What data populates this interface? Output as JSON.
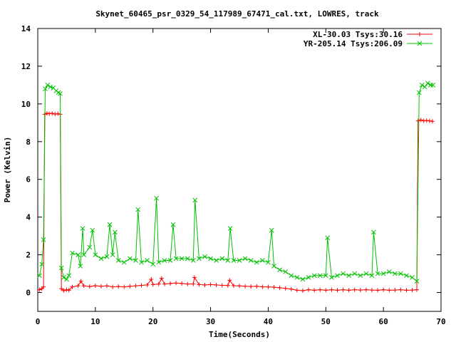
{
  "chart_data": {
    "type": "line",
    "title": "Skynet_60465_psr_0329_54_117989_67471_cal.txt, LOWRES, track",
    "xlabel": "Time(Seconds)",
    "ylabel": "Power (Kelvin)",
    "xlim": [
      0,
      70
    ],
    "ylim": [
      -1,
      14
    ],
    "xticks": [
      0,
      10,
      20,
      30,
      40,
      50,
      60,
      70
    ],
    "yticks": [
      0,
      2,
      4,
      6,
      8,
      10,
      12,
      14
    ],
    "grid": false,
    "legend_position": "top-right",
    "series": [
      {
        "name": "XL-30.03 Tsys:30.16",
        "color": "#ff0000",
        "marker": "plus",
        "points": [
          [
            0.3,
            0.15
          ],
          [
            0.7,
            0.2
          ],
          [
            1.0,
            0.3
          ],
          [
            1.2,
            9.45
          ],
          [
            1.6,
            9.5
          ],
          [
            2.0,
            9.48
          ],
          [
            2.5,
            9.5
          ],
          [
            3.0,
            9.46
          ],
          [
            3.5,
            9.48
          ],
          [
            3.9,
            9.45
          ],
          [
            4.1,
            0.2
          ],
          [
            4.5,
            0.1
          ],
          [
            5.0,
            0.15
          ],
          [
            5.4,
            0.12
          ],
          [
            6.0,
            0.3
          ],
          [
            7.0,
            0.35
          ],
          [
            7.5,
            0.6
          ],
          [
            8.0,
            0.35
          ],
          [
            9.0,
            0.32
          ],
          [
            10.0,
            0.36
          ],
          [
            11.0,
            0.33
          ],
          [
            12.0,
            0.35
          ],
          [
            13.0,
            0.3
          ],
          [
            14.0,
            0.32
          ],
          [
            15.0,
            0.3
          ],
          [
            16.0,
            0.33
          ],
          [
            17.0,
            0.35
          ],
          [
            18.0,
            0.38
          ],
          [
            19.0,
            0.4
          ],
          [
            19.7,
            0.7
          ],
          [
            20.0,
            0.42
          ],
          [
            21.0,
            0.45
          ],
          [
            21.5,
            0.75
          ],
          [
            22.0,
            0.45
          ],
          [
            23.0,
            0.48
          ],
          [
            24.0,
            0.5
          ],
          [
            25.0,
            0.48
          ],
          [
            26.0,
            0.45
          ],
          [
            27.0,
            0.45
          ],
          [
            27.2,
            0.8
          ],
          [
            28.0,
            0.42
          ],
          [
            29.0,
            0.4
          ],
          [
            30.0,
            0.42
          ],
          [
            31.0,
            0.4
          ],
          [
            32.0,
            0.38
          ],
          [
            33.0,
            0.37
          ],
          [
            33.3,
            0.65
          ],
          [
            34.0,
            0.36
          ],
          [
            35.0,
            0.35
          ],
          [
            36.0,
            0.33
          ],
          [
            37.0,
            0.32
          ],
          [
            38.0,
            0.33
          ],
          [
            39.0,
            0.3
          ],
          [
            40.0,
            0.3
          ],
          [
            41.0,
            0.28
          ],
          [
            42.0,
            0.25
          ],
          [
            43.0,
            0.22
          ],
          [
            44.0,
            0.18
          ],
          [
            45.0,
            0.12
          ],
          [
            46.0,
            0.1
          ],
          [
            47.0,
            0.15
          ],
          [
            48.0,
            0.12
          ],
          [
            49.0,
            0.15
          ],
          [
            50.0,
            0.12
          ],
          [
            51.0,
            0.15
          ],
          [
            52.0,
            0.12
          ],
          [
            53.0,
            0.15
          ],
          [
            54.0,
            0.12
          ],
          [
            55.0,
            0.15
          ],
          [
            56.0,
            0.13
          ],
          [
            57.0,
            0.15
          ],
          [
            58.0,
            0.13
          ],
          [
            59.0,
            0.12
          ],
          [
            60.0,
            0.15
          ],
          [
            61.0,
            0.12
          ],
          [
            62.0,
            0.13
          ],
          [
            63.0,
            0.15
          ],
          [
            64.0,
            0.12
          ],
          [
            65.0,
            0.13
          ],
          [
            65.8,
            0.15
          ],
          [
            66.0,
            9.1
          ],
          [
            66.5,
            9.15
          ],
          [
            67.0,
            9.1
          ],
          [
            67.5,
            9.12
          ],
          [
            68.0,
            9.1
          ],
          [
            68.5,
            9.08
          ]
        ]
      },
      {
        "name": "YR-205.14 Tsys:206.09",
        "color": "#00c000",
        "marker": "cross",
        "points": [
          [
            0.3,
            0.9
          ],
          [
            0.7,
            1.5
          ],
          [
            1.0,
            2.8
          ],
          [
            1.3,
            10.8
          ],
          [
            1.7,
            11.0
          ],
          [
            2.2,
            10.9
          ],
          [
            2.7,
            10.85
          ],
          [
            3.2,
            10.7
          ],
          [
            3.6,
            10.6
          ],
          [
            3.9,
            10.55
          ],
          [
            4.1,
            1.3
          ],
          [
            4.5,
            0.8
          ],
          [
            5.0,
            0.7
          ],
          [
            5.4,
            0.9
          ],
          [
            6.0,
            2.1
          ],
          [
            7.0,
            2.0
          ],
          [
            7.4,
            1.4
          ],
          [
            7.8,
            3.4
          ],
          [
            8.0,
            2.0
          ],
          [
            9.0,
            2.4
          ],
          [
            9.5,
            3.3
          ],
          [
            10.0,
            2.0
          ],
          [
            11.0,
            1.8
          ],
          [
            12.0,
            1.9
          ],
          [
            12.5,
            3.6
          ],
          [
            13.0,
            2.0
          ],
          [
            13.4,
            3.2
          ],
          [
            14.0,
            1.7
          ],
          [
            15.0,
            1.6
          ],
          [
            16.0,
            1.8
          ],
          [
            17.0,
            1.7
          ],
          [
            17.4,
            4.4
          ],
          [
            18.0,
            1.6
          ],
          [
            19.0,
            1.7
          ],
          [
            20.0,
            1.5
          ],
          [
            20.6,
            5.0
          ],
          [
            21.0,
            1.6
          ],
          [
            22.0,
            1.7
          ],
          [
            23.0,
            1.7
          ],
          [
            23.5,
            3.6
          ],
          [
            24.0,
            1.8
          ],
          [
            25.0,
            1.8
          ],
          [
            26.0,
            1.8
          ],
          [
            27.0,
            1.7
          ],
          [
            27.3,
            4.9
          ],
          [
            28.0,
            1.8
          ],
          [
            29.0,
            1.9
          ],
          [
            30.0,
            1.8
          ],
          [
            31.0,
            1.7
          ],
          [
            32.0,
            1.8
          ],
          [
            33.0,
            1.7
          ],
          [
            33.4,
            3.4
          ],
          [
            34.0,
            1.7
          ],
          [
            35.0,
            1.7
          ],
          [
            36.0,
            1.8
          ],
          [
            37.0,
            1.7
          ],
          [
            38.0,
            1.6
          ],
          [
            39.0,
            1.7
          ],
          [
            40.0,
            1.6
          ],
          [
            40.6,
            3.3
          ],
          [
            41.0,
            1.4
          ],
          [
            42.0,
            1.2
          ],
          [
            43.0,
            1.1
          ],
          [
            44.0,
            0.9
          ],
          [
            45.0,
            0.8
          ],
          [
            46.0,
            0.7
          ],
          [
            47.0,
            0.8
          ],
          [
            48.0,
            0.9
          ],
          [
            49.0,
            0.9
          ],
          [
            50.0,
            0.9
          ],
          [
            50.3,
            2.9
          ],
          [
            51.0,
            0.8
          ],
          [
            52.0,
            0.9
          ],
          [
            53.0,
            1.0
          ],
          [
            54.0,
            0.9
          ],
          [
            55.0,
            1.0
          ],
          [
            56.0,
            0.9
          ],
          [
            57.0,
            1.0
          ],
          [
            58.0,
            0.9
          ],
          [
            58.3,
            3.2
          ],
          [
            59.0,
            1.0
          ],
          [
            60.0,
            1.0
          ],
          [
            61.0,
            1.1
          ],
          [
            62.0,
            1.0
          ],
          [
            63.0,
            1.0
          ],
          [
            64.0,
            0.9
          ],
          [
            65.0,
            0.8
          ],
          [
            65.8,
            0.6
          ],
          [
            66.2,
            10.6
          ],
          [
            66.7,
            11.0
          ],
          [
            67.2,
            10.9
          ],
          [
            67.7,
            11.1
          ],
          [
            68.2,
            11.0
          ],
          [
            68.6,
            11.0
          ]
        ]
      }
    ]
  }
}
